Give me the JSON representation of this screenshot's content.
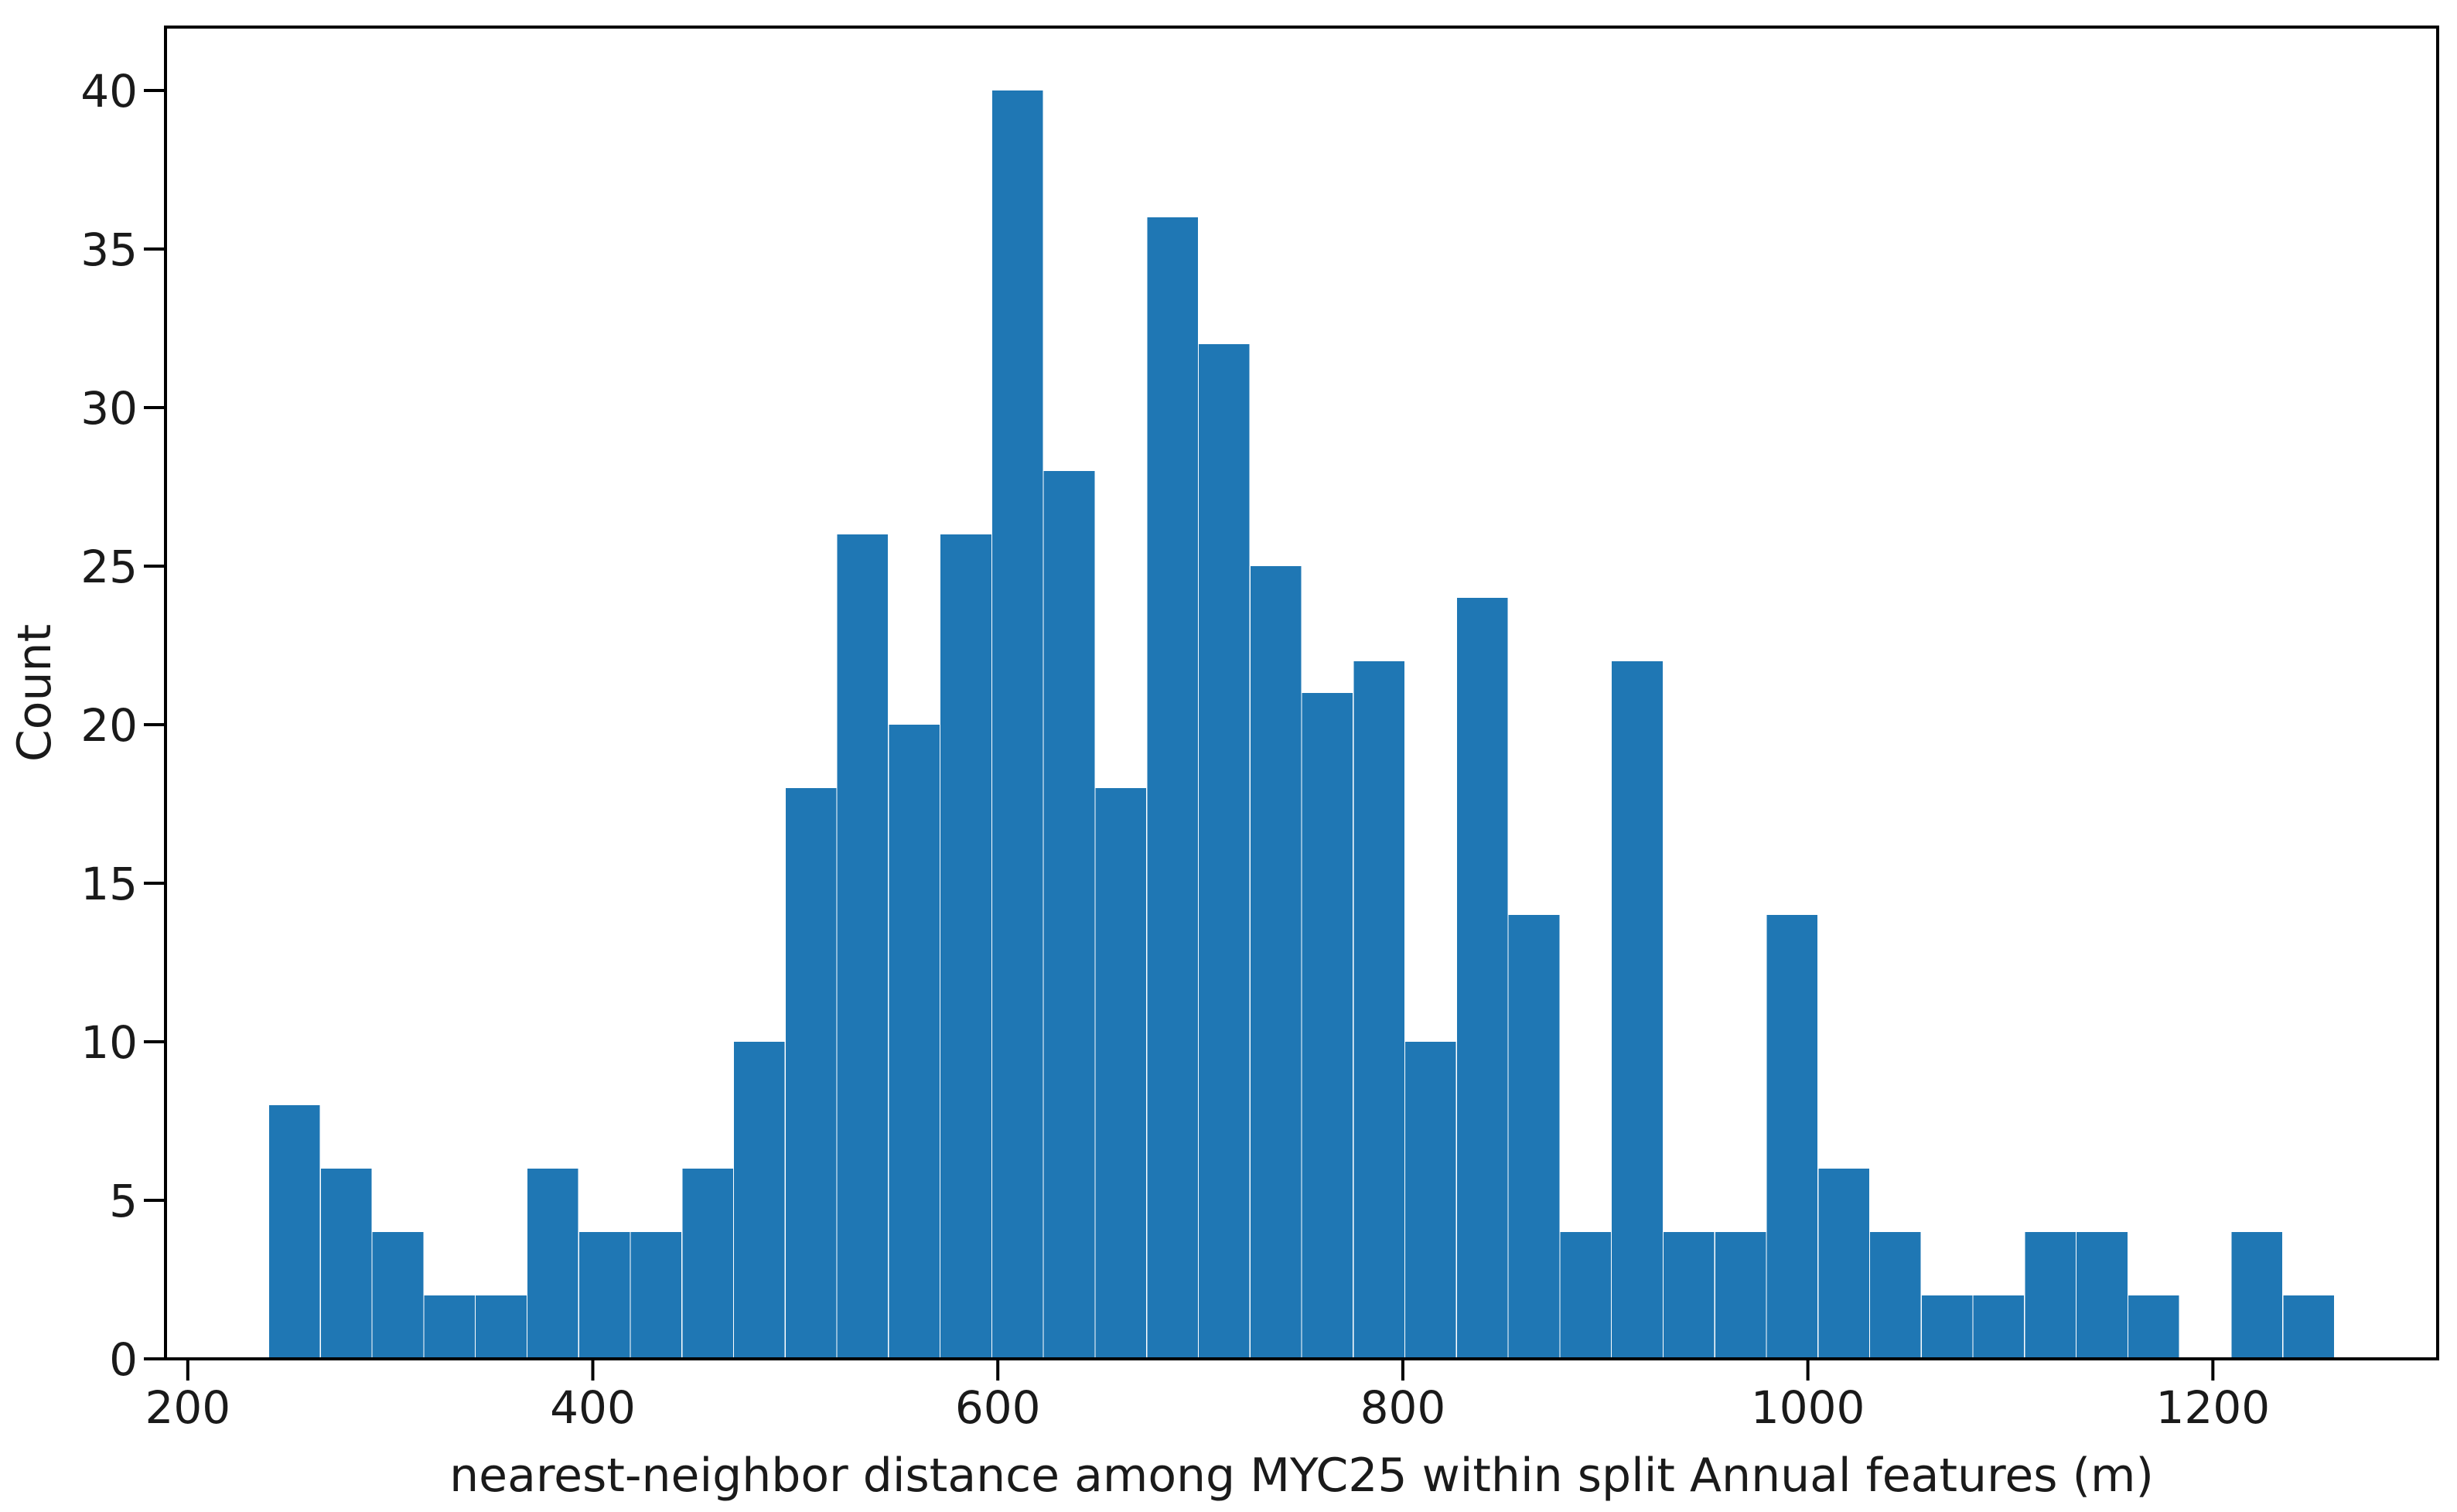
{
  "figure": {
    "background": "#ffffff",
    "bar_color": "#1f77b4",
    "axis_color": "#000000",
    "text_color": "#1a1a1a"
  },
  "chart_data": {
    "type": "bar",
    "subtype": "histogram",
    "title": "",
    "xlabel": "nearest-neighbor distance among MYC25 within split Annual features (m)",
    "ylabel": "Count",
    "bin_start": 240,
    "bin_width": 25.5,
    "counts": [
      8,
      6,
      4,
      2,
      2,
      6,
      4,
      4,
      6,
      10,
      18,
      26,
      20,
      26,
      40,
      28,
      18,
      36,
      32,
      25,
      21,
      22,
      10,
      24,
      14,
      4,
      22,
      4,
      4,
      14,
      6,
      4,
      2,
      2,
      4,
      4,
      2,
      0,
      4,
      2
    ],
    "xlim": [
      189,
      1311
    ],
    "ylim": [
      0,
      42
    ],
    "xticks": [
      200,
      400,
      600,
      800,
      1000,
      1200
    ],
    "yticks": [
      0,
      5,
      10,
      15,
      20,
      25,
      30,
      35,
      40
    ],
    "grid": false,
    "legend": null
  }
}
